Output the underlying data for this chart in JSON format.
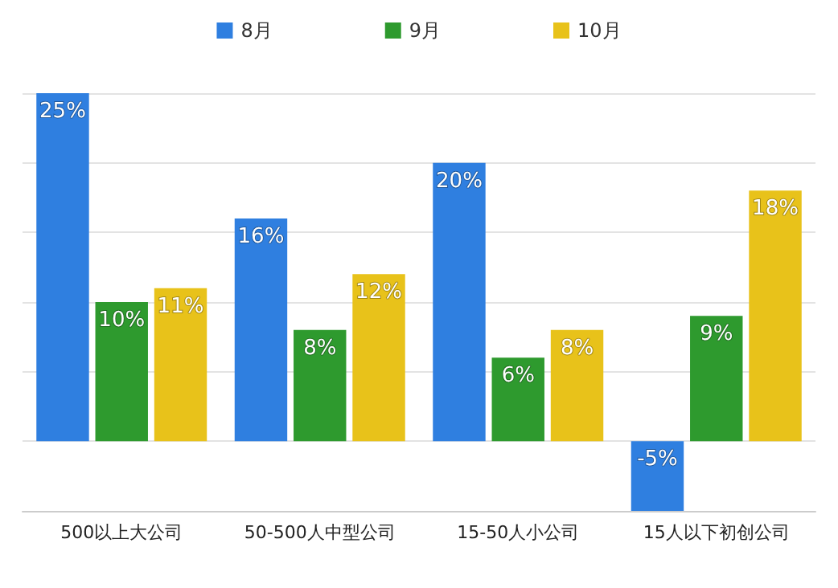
{
  "chart_data": {
    "type": "bar",
    "categories": [
      "500以上大公司",
      "50-500人中型公司",
      "15-50人小公司",
      "15人以下初创公司"
    ],
    "series": [
      {
        "name": "8月",
        "color": "#2f7fe0",
        "values": [
          25,
          16,
          20,
          -5
        ],
        "value_labels": [
          "25%",
          "16%",
          "20%",
          "-5%"
        ]
      },
      {
        "name": "9月",
        "color": "#2e9a2e",
        "values": [
          10,
          8,
          6,
          9
        ],
        "value_labels": [
          "10%",
          "8%",
          "6%",
          "9%"
        ]
      },
      {
        "name": "10月",
        "color": "#e8c21a",
        "values": [
          11,
          12,
          8,
          18
        ],
        "value_labels": [
          "11%",
          "12%",
          "8%",
          "18%"
        ]
      }
    ],
    "grid": "y",
    "legend": "top",
    "tick_labels": "x"
  }
}
